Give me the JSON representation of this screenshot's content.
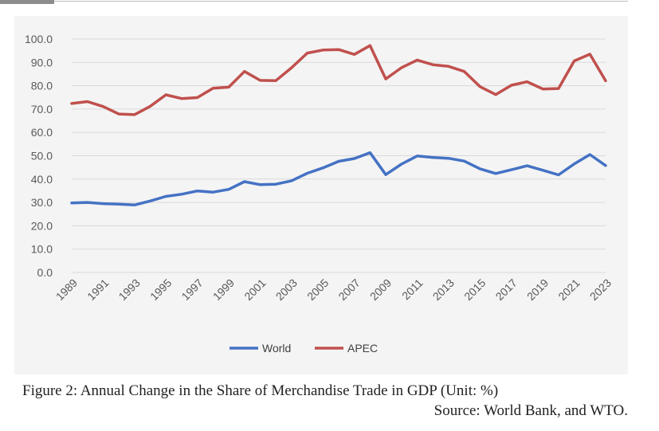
{
  "caption": {
    "title": "Figure 2: Annual Change in the Share of Merchandise Trade in GDP (Unit: %)",
    "source": "Source: World Bank, and WTO."
  },
  "chart_data": {
    "type": "line",
    "title": "",
    "xlabel": "",
    "ylabel": "",
    "ylim": [
      0,
      100
    ],
    "yticks": [
      "0.0",
      "10.0",
      "20.0",
      "30.0",
      "40.0",
      "50.0",
      "60.0",
      "70.0",
      "80.0",
      "90.0",
      "100.0"
    ],
    "x": [
      1989,
      1990,
      1991,
      1992,
      1993,
      1994,
      1995,
      1996,
      1997,
      1998,
      1999,
      2000,
      2001,
      2002,
      2003,
      2004,
      2005,
      2006,
      2007,
      2008,
      2009,
      2010,
      2011,
      2012,
      2013,
      2014,
      2015,
      2016,
      2017,
      2018,
      2019,
      2020,
      2021,
      2022,
      2023
    ],
    "xtick_labels": [
      "1989",
      "1991",
      "1993",
      "1995",
      "1997",
      "1999",
      "2001",
      "2003",
      "2005",
      "2007",
      "2009",
      "2011",
      "2013",
      "2015",
      "2017",
      "2019",
      "2021",
      "2023"
    ],
    "grid": true,
    "legend_position": "bottom",
    "series": [
      {
        "name": "World",
        "color": "#4472c4",
        "values": [
          29.8,
          30.0,
          29.5,
          29.3,
          28.9,
          30.6,
          32.6,
          33.5,
          34.9,
          34.4,
          35.6,
          38.9,
          37.6,
          37.8,
          39.3,
          42.5,
          44.8,
          47.6,
          48.8,
          51.3,
          41.9,
          46.4,
          49.9,
          49.3,
          48.9,
          47.7,
          44.4,
          42.4,
          44.0,
          45.7,
          43.8,
          41.8,
          46.5,
          50.5,
          45.8
        ]
      },
      {
        "name": "APEC",
        "color": "#c0504d",
        "values": [
          72.4,
          73.2,
          71.1,
          67.9,
          67.6,
          71.2,
          76.1,
          74.5,
          74.9,
          78.9,
          79.4,
          86.1,
          82.3,
          82.2,
          87.7,
          94.0,
          95.3,
          95.5,
          93.4,
          97.2,
          82.9,
          87.7,
          91.0,
          89.0,
          88.3,
          86.1,
          79.6,
          76.2,
          80.2,
          81.7,
          78.6,
          78.8,
          90.6,
          93.5,
          82.1
        ]
      }
    ]
  }
}
